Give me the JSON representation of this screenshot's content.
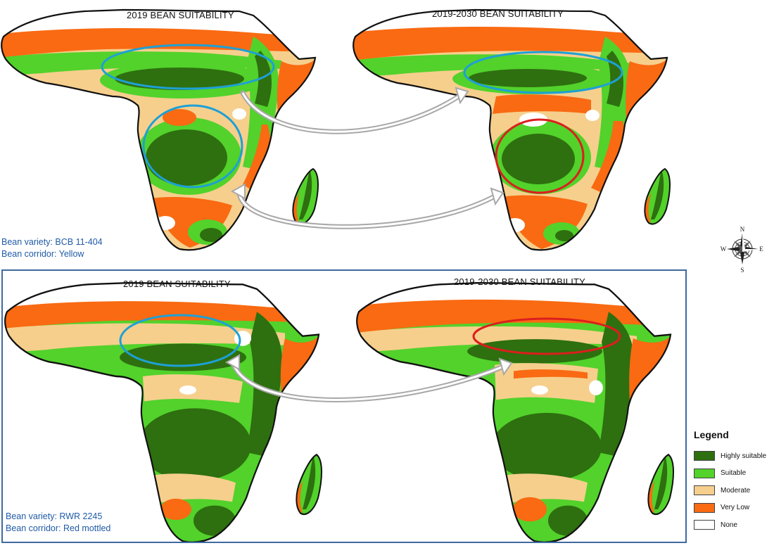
{
  "colors": {
    "highly_suitable": "#2e6f10",
    "suitable": "#52d22b",
    "moderate": "#f6cf8d",
    "very_low": "#f96a12",
    "none": "#ffffff",
    "highlight_blue": "#1ea0d6",
    "highlight_red": "#dc1e1e",
    "arrow_gray": "#a8a8a8",
    "frame_blue": "#3e6aa0",
    "annotation_text": "#1f5aa6"
  },
  "panels": {
    "top_left": {
      "title": "2019 BEAN SUITABILITY"
    },
    "top_right": {
      "title": "2019-2030 BEAN SUITABILITY"
    },
    "bottom_left": {
      "title": "2019 BEAN SUITABILITY"
    },
    "bottom_right": {
      "title": "2019-2030 BEAN SUITABILITY"
    }
  },
  "annotations": {
    "top": {
      "variety": "Bean variety:  BCB 11-404",
      "corridor": "Bean corridor: Yellow"
    },
    "bottom": {
      "variety": "Bean variety:  RWR 2245",
      "corridor": "Bean corridor: Red mottled"
    }
  },
  "compass": {
    "n": "N",
    "s": "S",
    "e": "E",
    "w": "W"
  },
  "legend": {
    "title": "Legend",
    "items": [
      {
        "label": "Highly suitable",
        "color": "#2e6f10"
      },
      {
        "label": "Suitable",
        "color": "#52d22b"
      },
      {
        "label": "Moderate",
        "color": "#f6cf8d"
      },
      {
        "label": "Very Low",
        "color": "#f96a12"
      },
      {
        "label": "None",
        "color": "#ffffff"
      }
    ]
  }
}
